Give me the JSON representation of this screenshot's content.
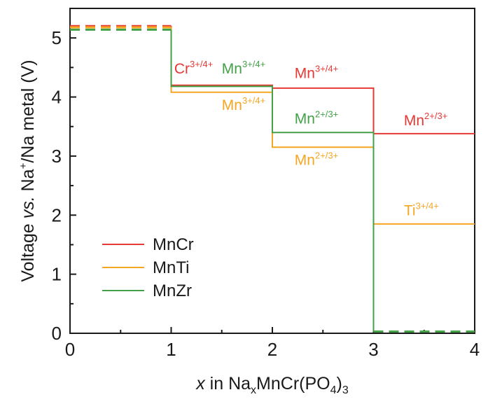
{
  "chart_data": {
    "type": "line",
    "xlabel": {
      "italic": "x",
      "rest": " in Na",
      "sub": "x",
      "after": "MnCr(PO",
      "sub2": "4",
      "close": ")",
      "sub3": "3"
    },
    "ylabel": {
      "pre": "Voltage ",
      "italic": "vs.",
      "mid": " Na",
      "sup": "+",
      "post": "/Na metal (V)"
    },
    "xlim": [
      0,
      4
    ],
    "ylim": [
      0,
      5.5
    ],
    "xticks": [
      "0",
      "1",
      "2",
      "3",
      "4"
    ],
    "yticks": [
      "0",
      "1",
      "2",
      "3",
      "4",
      "5"
    ],
    "legend_position": "lower-left",
    "series": [
      {
        "name": "MnCr",
        "color": "#e53935",
        "points": [
          [
            1,
            5.2
          ],
          [
            1,
            4.2
          ],
          [
            2,
            4.2
          ],
          [
            2,
            4.15
          ],
          [
            3,
            4.15
          ],
          [
            3,
            3.38
          ],
          [
            4,
            3.38
          ]
        ],
        "dashed": [
          [
            0,
            5.2
          ],
          [
            1,
            5.2
          ]
        ]
      },
      {
        "name": "MnTi",
        "color": "#f5a623",
        "points": [
          [
            1,
            5.18
          ],
          [
            1,
            4.08
          ],
          [
            2,
            4.08
          ],
          [
            2,
            3.15
          ],
          [
            3,
            3.15
          ],
          [
            3,
            1.85
          ],
          [
            4,
            1.85
          ]
        ],
        "dashed": [
          [
            0,
            5.18
          ],
          [
            1,
            5.18
          ]
        ]
      },
      {
        "name": "MnZr",
        "color": "#43a047",
        "points": [
          [
            1,
            5.14
          ],
          [
            1,
            4.18
          ],
          [
            2,
            4.18
          ],
          [
            2,
            3.4
          ],
          [
            3,
            3.4
          ],
          [
            3,
            0.03
          ]
        ],
        "dashed": [
          [
            0,
            5.14
          ],
          [
            1,
            5.14
          ],
          [
            3,
            0.03
          ],
          [
            4,
            0.03
          ]
        ]
      }
    ],
    "annotations": [
      {
        "base": "Cr",
        "sup": "3+/4+",
        "x": 1.03,
        "y": 4.4,
        "color": "#e53935",
        "anchor": "start"
      },
      {
        "base": "Mn",
        "sup": "3+/4+",
        "x": 1.5,
        "y": 4.4,
        "color": "#43a047",
        "anchor": "start"
      },
      {
        "base": "Mn",
        "sup": "3+/4+",
        "x": 2.22,
        "y": 4.32,
        "color": "#e53935",
        "anchor": "start"
      },
      {
        "base": "Mn",
        "sup": "3+/4+",
        "x": 1.5,
        "y": 3.78,
        "color": "#f5a623",
        "anchor": "start"
      },
      {
        "base": "Mn",
        "sup": "2+/3+",
        "x": 2.22,
        "y": 3.55,
        "color": "#43a047",
        "anchor": "start"
      },
      {
        "base": "Mn",
        "sup": "2+/3+",
        "x": 2.22,
        "y": 2.85,
        "color": "#f5a623",
        "anchor": "start"
      },
      {
        "base": "Mn",
        "sup": "2+/3+",
        "x": 3.3,
        "y": 3.52,
        "color": "#e53935",
        "anchor": "start"
      },
      {
        "base": "Ti",
        "sup": "3+/4+",
        "x": 3.3,
        "y": 2.0,
        "color": "#f5a623",
        "anchor": "start"
      }
    ]
  }
}
